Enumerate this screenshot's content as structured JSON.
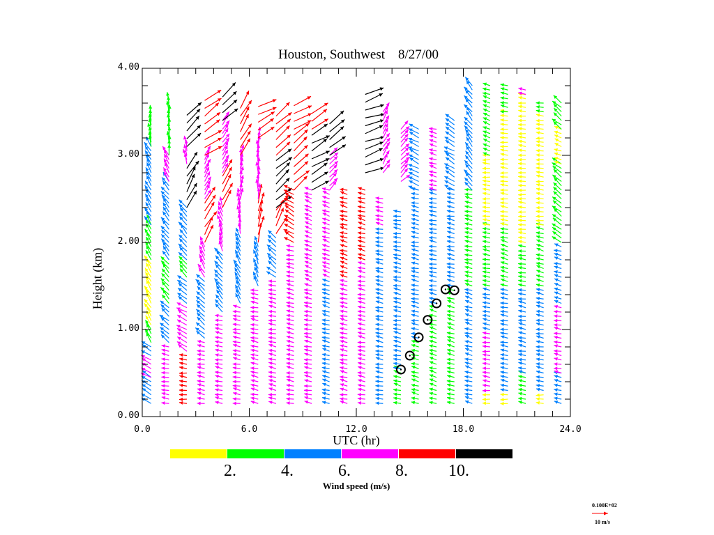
{
  "chart_data": {
    "type": "wind-profile-time-height",
    "title": "Houston, Southwest    8/27/00",
    "xlabel": "UTC (hr)",
    "ylabel": "Height (km)",
    "xlim": [
      0,
      24
    ],
    "ylim": [
      0,
      4
    ],
    "xticks": [
      "0.0",
      "6.0",
      "12.0",
      "18.0",
      "24.0"
    ],
    "xtick_values": [
      0,
      6,
      12,
      18,
      24
    ],
    "yticks": [
      "0.00",
      "1.00",
      "2.00",
      "3.00",
      "4.00"
    ],
    "ytick_values": [
      0,
      1,
      2,
      3,
      4
    ],
    "colorbar": {
      "title": "Wind speed (m/s)",
      "colors": [
        "#ffff00",
        "#00ff00",
        "#0080ff",
        "#ff00ff",
        "#ff0000",
        "#000000"
      ],
      "labels": [
        "2.",
        "4.",
        "6.",
        "8.",
        "10."
      ],
      "label_values": [
        2,
        4,
        6,
        8,
        10
      ]
    },
    "reference_vector": {
      "value_label": "0.100E+02",
      "unit_label": "10 m/s",
      "color": "#ff0000"
    },
    "profiles": [
      {
        "t": 0.5,
        "segments": [
          [
            0.15,
            0.45,
            "#0080ff",
            150
          ],
          [
            0.45,
            0.7,
            "#ff00ff",
            150
          ],
          [
            0.7,
            0.85,
            "#0080ff",
            150
          ],
          [
            0.85,
            1.05,
            "#00ff00",
            120
          ],
          [
            1.05,
            1.8,
            "#ffff00",
            120
          ],
          [
            1.8,
            2.2,
            "#00ff00",
            120
          ],
          [
            2.2,
            3.1,
            "#0080ff",
            120
          ],
          [
            3.1,
            3.45,
            "#00ff00",
            100
          ]
        ]
      },
      {
        "t": 1.5,
        "segments": [
          [
            0.15,
            0.85,
            "#ff00ff",
            170
          ],
          [
            0.85,
            1.3,
            "#0080ff",
            140
          ],
          [
            1.3,
            1.8,
            "#00ff00",
            130
          ],
          [
            1.8,
            2.7,
            "#0080ff",
            130
          ],
          [
            2.7,
            3.0,
            "#ff00ff",
            120
          ],
          [
            3.0,
            3.6,
            "#00ff00",
            95
          ]
        ]
      },
      {
        "t": 2.5,
        "segments": [
          [
            0.15,
            0.75,
            "#ff0000",
            175
          ],
          [
            0.75,
            1.3,
            "#ff00ff",
            150
          ],
          [
            1.3,
            1.6,
            "#0080ff",
            140
          ],
          [
            1.6,
            1.8,
            "#00ff00",
            130
          ],
          [
            1.8,
            2.4,
            "#0080ff",
            130
          ],
          [
            2.4,
            2.9,
            "#000000",
            60
          ],
          [
            2.9,
            3.1,
            "#ff00ff",
            100
          ],
          [
            3.1,
            3.5,
            "#000000",
            50
          ]
        ]
      },
      {
        "t": 3.5,
        "segments": [
          [
            0.15,
            0.9,
            "#ff00ff",
            170
          ],
          [
            0.9,
            1.6,
            "#0080ff",
            140
          ],
          [
            1.6,
            2.0,
            "#ff00ff",
            120
          ],
          [
            2.0,
            2.5,
            "#ff0000",
            60
          ],
          [
            2.5,
            3.0,
            "#ff00ff",
            60
          ],
          [
            3.0,
            3.7,
            "#ff0000",
            35
          ]
        ]
      },
      {
        "t": 4.5,
        "segments": [
          [
            0.15,
            1.2,
            "#ff00ff",
            170
          ],
          [
            1.2,
            1.9,
            "#0080ff",
            130
          ],
          [
            1.9,
            2.4,
            "#ff00ff",
            110
          ],
          [
            2.4,
            2.8,
            "#ff0000",
            65
          ],
          [
            2.8,
            3.4,
            "#ff00ff",
            60
          ],
          [
            3.4,
            3.7,
            "#000000",
            45
          ]
        ]
      },
      {
        "t": 5.5,
        "segments": [
          [
            0.15,
            1.3,
            "#ff00ff",
            170
          ],
          [
            1.3,
            2.1,
            "#0080ff",
            120
          ],
          [
            2.1,
            2.5,
            "#ff00ff",
            100
          ],
          [
            2.5,
            3.0,
            "#ff00ff",
            80
          ],
          [
            3.0,
            3.6,
            "#ff0000",
            60
          ]
        ]
      },
      {
        "t": 6.5,
        "segments": [
          [
            0.15,
            1.5,
            "#ff00ff",
            170
          ],
          [
            1.5,
            2.0,
            "#0080ff",
            110
          ],
          [
            2.0,
            2.5,
            "#ff0000",
            80
          ],
          [
            2.5,
            3.2,
            "#ff00ff",
            90
          ],
          [
            3.2,
            3.6,
            "#ff0000",
            30
          ]
        ]
      },
      {
        "t": 7.5,
        "segments": [
          [
            0.15,
            1.6,
            "#ff00ff",
            170
          ],
          [
            1.6,
            2.1,
            "#0080ff",
            140
          ],
          [
            2.1,
            2.4,
            "#ff0000",
            60
          ],
          [
            2.4,
            3.0,
            "#000000",
            40
          ],
          [
            3.0,
            3.5,
            "#ff0000",
            40
          ]
        ]
      },
      {
        "t": 8.5,
        "segments": [
          [
            0.15,
            2.0,
            "#ff00ff",
            170
          ],
          [
            2.0,
            2.6,
            "#ff0000",
            150
          ],
          [
            2.6,
            3.3,
            "#ff0000",
            40
          ],
          [
            3.3,
            3.6,
            "#ff0000",
            20
          ]
        ]
      },
      {
        "t": 9.5,
        "segments": [
          [
            0.15,
            1.5,
            "#ff00ff",
            170
          ],
          [
            1.5,
            2.6,
            "#ff00ff",
            160
          ],
          [
            2.6,
            3.3,
            "#000000",
            30
          ],
          [
            3.3,
            3.5,
            "#ff0000",
            40
          ]
        ]
      },
      {
        "t": 10.5,
        "segments": [
          [
            0.15,
            1.6,
            "#0080ff",
            165
          ],
          [
            1.6,
            2.6,
            "#ff00ff",
            160
          ],
          [
            2.6,
            3.0,
            "#ff00ff",
            45
          ],
          [
            3.0,
            3.4,
            "#000000",
            35
          ]
        ]
      },
      {
        "t": 11.5,
        "segments": [
          [
            0.15,
            1.6,
            "#ff00ff",
            170
          ],
          [
            1.6,
            2.6,
            "#ff0000",
            165
          ]
        ]
      },
      {
        "t": 12.5,
        "segments": [
          [
            0.15,
            1.8,
            "#ff00ff",
            170
          ],
          [
            1.8,
            2.6,
            "#ff0000",
            165
          ],
          [
            2.8,
            3.7,
            "#000000",
            20
          ]
        ]
      },
      {
        "t": 13.5,
        "segments": [
          [
            0.15,
            2.2,
            "#0080ff",
            170
          ],
          [
            2.2,
            2.5,
            "#ff00ff",
            165
          ],
          [
            2.8,
            3.5,
            "#ff00ff",
            60
          ]
        ]
      },
      {
        "t": 14.5,
        "segments": [
          [
            0.15,
            0.55,
            "#00ff00",
            165
          ],
          [
            0.55,
            2.4,
            "#0080ff",
            170
          ],
          [
            2.7,
            3.3,
            "#ff00ff",
            45
          ]
        ]
      },
      {
        "t": 15.5,
        "segments": [
          [
            0.15,
            0.9,
            "#00ff00",
            165
          ],
          [
            0.9,
            2.6,
            "#0080ff",
            170
          ],
          [
            2.6,
            3.3,
            "#0080ff",
            150
          ]
        ]
      },
      {
        "t": 16.5,
        "segments": [
          [
            0.15,
            1.3,
            "#00ff00",
            165
          ],
          [
            1.3,
            2.6,
            "#0080ff",
            170
          ],
          [
            2.6,
            3.3,
            "#ff00ff",
            165
          ]
        ]
      },
      {
        "t": 17.5,
        "segments": [
          [
            0.15,
            1.5,
            "#00ff00",
            165
          ],
          [
            1.5,
            2.6,
            "#0080ff",
            170
          ],
          [
            2.6,
            3.4,
            "#0080ff",
            150
          ]
        ]
      },
      {
        "t": 18.5,
        "segments": [
          [
            0.15,
            1.5,
            "#0080ff",
            165
          ],
          [
            1.5,
            2.6,
            "#00ff00",
            170
          ],
          [
            2.6,
            3.8,
            "#0080ff",
            130
          ]
        ]
      },
      {
        "t": 19.5,
        "segments": [
          [
            0.15,
            0.3,
            "#ffff00",
            180
          ],
          [
            0.3,
            1.0,
            "#ff00ff",
            175
          ],
          [
            1.0,
            1.5,
            "#0080ff",
            170
          ],
          [
            1.5,
            2.2,
            "#00ff00",
            170
          ],
          [
            2.2,
            3.0,
            "#ffff00",
            175
          ],
          [
            3.0,
            3.8,
            "#00ff00",
            160
          ]
        ]
      },
      {
        "t": 20.5,
        "segments": [
          [
            0.15,
            0.3,
            "#ffff00",
            180
          ],
          [
            0.3,
            1.5,
            "#0080ff",
            170
          ],
          [
            1.5,
            2.2,
            "#00ff00",
            165
          ],
          [
            2.2,
            3.5,
            "#ffff00",
            175
          ],
          [
            3.5,
            3.8,
            "#00ff00",
            170
          ]
        ]
      },
      {
        "t": 21.5,
        "segments": [
          [
            0.15,
            0.5,
            "#00ff00",
            170
          ],
          [
            0.5,
            1.5,
            "#0080ff",
            170
          ],
          [
            1.5,
            2.0,
            "#00ff00",
            170
          ],
          [
            2.0,
            3.7,
            "#ffff00",
            175
          ],
          [
            3.7,
            3.8,
            "#ff00ff",
            160
          ]
        ]
      },
      {
        "t": 22.5,
        "segments": [
          [
            0.15,
            0.3,
            "#ffff00",
            180
          ],
          [
            0.3,
            1.5,
            "#0080ff",
            170
          ],
          [
            1.5,
            2.2,
            "#00ff00",
            165
          ],
          [
            2.2,
            3.5,
            "#ffff00",
            175
          ],
          [
            3.5,
            3.6,
            "#00ff00",
            170
          ]
        ]
      },
      {
        "t": 23.5,
        "segments": [
          [
            0.15,
            0.5,
            "#0080ff",
            165
          ],
          [
            0.5,
            1.3,
            "#ff00ff",
            170
          ],
          [
            1.3,
            2.0,
            "#0080ff",
            165
          ],
          [
            2.0,
            2.9,
            "#00ff00",
            140
          ],
          [
            2.9,
            3.3,
            "#ffff00",
            160
          ],
          [
            3.3,
            3.6,
            "#00ff00",
            140
          ]
        ]
      }
    ],
    "markers": {
      "type": "circle",
      "points": [
        {
          "t": 14.5,
          "h": 0.54
        },
        {
          "t": 15.0,
          "h": 0.7
        },
        {
          "t": 15.5,
          "h": 0.91
        },
        {
          "t": 16.0,
          "h": 1.11
        },
        {
          "t": 16.5,
          "h": 1.3
        },
        {
          "t": 17.0,
          "h": 1.46
        },
        {
          "t": 17.5,
          "h": 1.45
        }
      ]
    }
  }
}
